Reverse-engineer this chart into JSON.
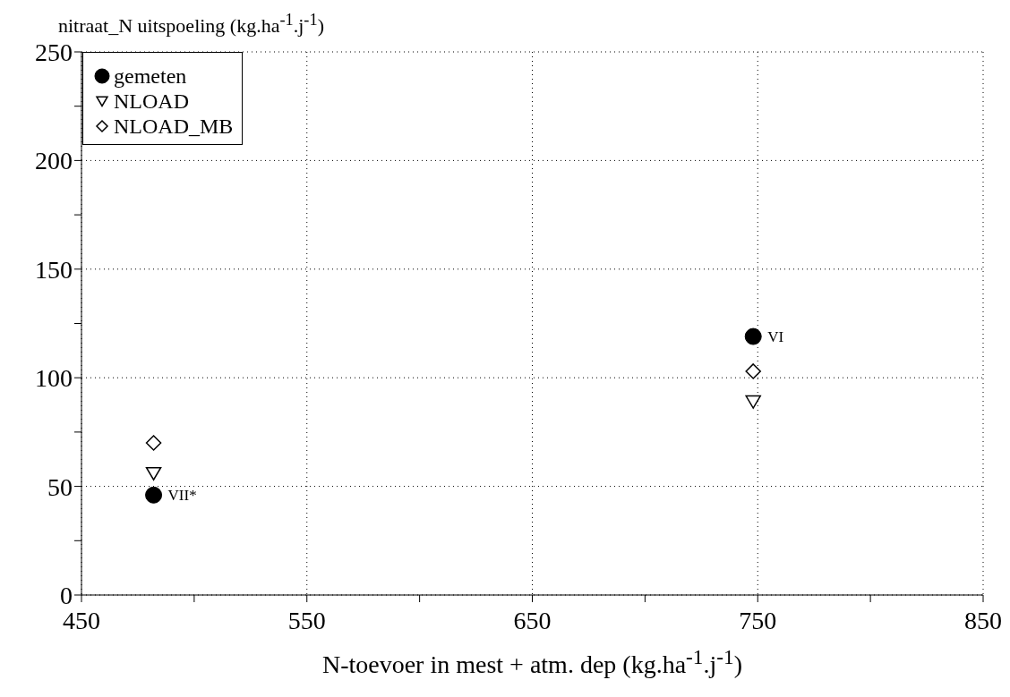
{
  "chart_data": {
    "type": "scatter",
    "ylabel": "nitraat_N uitspoeling (kg.ha$^{-1}$.j$^{-1}$)",
    "xlabel": "N-toevoer in mest + atm. dep (kg.ha$^{-1}$.j$^{-1}$)",
    "x": [
      482,
      748
    ],
    "series": [
      {
        "name": "gemeten",
        "color": "#000000",
        "marker": "circle",
        "values": [
          46,
          119
        ]
      },
      {
        "name": "NLOAD",
        "color": "#000000",
        "marker": "triangle",
        "values": [
          56,
          89
        ]
      },
      {
        "name": "NLOAD_MB",
        "color": "#000000",
        "marker": "diamond",
        "values": [
          70,
          103
        ]
      }
    ],
    "xlim": [
      450,
      850
    ],
    "xticks": [
      450,
      {
        "value": 500,
        "label": null
      },
      550,
      {
        "value": 600,
        "label": null
      },
      650,
      {
        "value": 700,
        "label": null
      },
      750,
      {
        "value": 800,
        "label": null
      },
      850
    ],
    "ylim": [
      0,
      250
    ],
    "yticks": [
      0,
      {
        "value": 25,
        "label": null
      },
      50,
      {
        "value": 75,
        "label": null
      },
      100,
      {
        "value": 125,
        "label": null
      },
      150,
      {
        "value": 175,
        "label": null
      },
      200,
      {
        "value": 225,
        "label": null
      },
      250
    ],
    "annotations": [
      {
        "text": "VI",
        "x": 748,
        "y": 119
      },
      {
        "text": "VII*",
        "x": 482,
        "y": 46
      }
    ],
    "grid": true,
    "legend": "top left"
  }
}
